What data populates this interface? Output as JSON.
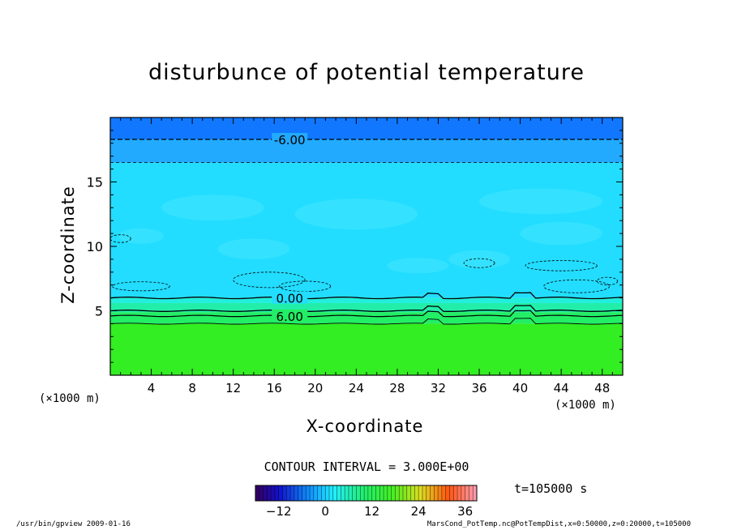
{
  "chart_data": {
    "type": "heatmap",
    "title": "disturbunce of potential temperature",
    "xlabel": "X-coordinate",
    "ylabel": "Z-coordinate",
    "x_unit": "(×1000 m)",
    "x_unit_right": "(×1000 m)",
    "xlim": [
      0,
      50
    ],
    "ylim": [
      0,
      20
    ],
    "x_ticks": [
      4,
      8,
      12,
      16,
      20,
      24,
      28,
      32,
      36,
      40,
      44,
      48
    ],
    "y_ticks": [
      5,
      10,
      15
    ],
    "contour_labels": [
      "-6.00",
      "0.00",
      "6.00"
    ],
    "contour_interval_text": "CONTOUR INTERVAL = 3.000E+00",
    "colorbar": {
      "range": [
        -18,
        39
      ],
      "ticks": [
        -12,
        0,
        12,
        24,
        36
      ]
    },
    "fill_bands": [
      {
        "z0": 0,
        "z1": 4.0,
        "value": 9,
        "color": "#33ee22"
      },
      {
        "z0": 4.0,
        "z1": 4.9,
        "value": 6,
        "color": "#22ee66"
      },
      {
        "z0": 4.9,
        "z1": 5.6,
        "value": 3,
        "color": "#22eeaa"
      },
      {
        "z0": 5.6,
        "z1": 6.0,
        "value": 0,
        "color": "#22eedd"
      },
      {
        "z0": 6.0,
        "z1": 16.5,
        "value": -3,
        "color": "#22ddff"
      },
      {
        "z0": 16.5,
        "z1": 18.3,
        "value": -6,
        "color": "#22aaff"
      },
      {
        "z0": 18.3,
        "z1": 20,
        "value": -9,
        "color": "#1177ff"
      }
    ],
    "time_label": "t=105000 s"
  },
  "footer": {
    "left": "/usr/bin/gpview   2009-01-16",
    "right": "MarsCond_PotTemp.nc@PotTempDist,x=0:50000,z=0:20000,t=105000"
  }
}
